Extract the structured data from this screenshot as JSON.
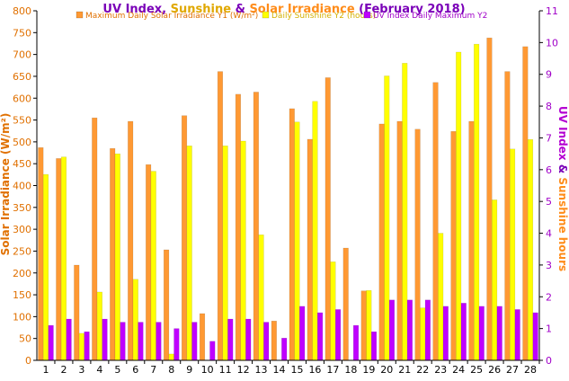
{
  "chart_data": {
    "type": "bar",
    "title_parts": [
      {
        "text": "UV Index",
        "color": "#7a00b8"
      },
      {
        "text": ", ",
        "color": "#7a00b8"
      },
      {
        "text": "Sunshine",
        "color": "#e0a800"
      },
      {
        "text": " & ",
        "color": "#7a00b8"
      },
      {
        "text": "Solar Irradiance",
        "color": "#ff8c1a"
      },
      {
        "text": " (February 2018)",
        "color": "#7a00b8"
      }
    ],
    "ylabel_left": "Solar Irradiance (W/m²)",
    "ylabel_right_parts": [
      {
        "text": "UV Index",
        "color": "#b400d2"
      },
      {
        "text": " & ",
        "color": "#7a00b8"
      },
      {
        "text": "Sunshine hours",
        "color": "#ff8c1a"
      }
    ],
    "ylim_left": [
      0,
      800
    ],
    "yticks_left": [
      0,
      50,
      100,
      150,
      200,
      250,
      300,
      350,
      400,
      450,
      500,
      550,
      600,
      650,
      700,
      750,
      800
    ],
    "ylim_right": [
      0,
      11
    ],
    "yticks_right": [
      0,
      1,
      2,
      3,
      4,
      5,
      6,
      7,
      8,
      9,
      10,
      11
    ],
    "categories": [
      "1",
      "2",
      "3",
      "4",
      "5",
      "6",
      "7",
      "8",
      "9",
      "10",
      "11",
      "12",
      "13",
      "14",
      "15",
      "16",
      "17",
      "18",
      "19",
      "20",
      "21",
      "22",
      "23",
      "24",
      "25",
      "26",
      "27",
      "28"
    ],
    "series": [
      {
        "name": "Maximum Daily Solar Irradiance Y1 (W/m²)",
        "axis": "left",
        "color": "#ff9933",
        "values": [
          487,
          462,
          218,
          555,
          485,
          547,
          448,
          253,
          560,
          107,
          661,
          609,
          614,
          90,
          576,
          506,
          647,
          257,
          159,
          541,
          547,
          529,
          636,
          524,
          547,
          738,
          661,
          718
        ]
      },
      {
        "name": "Daily Sunshine Y2 (hours)",
        "axis": "right",
        "color": "#ffff00",
        "values": [
          5.85,
          6.4,
          0.85,
          2.15,
          6.5,
          2.55,
          5.95,
          0.2,
          6.75,
          0,
          6.75,
          6.9,
          3.95,
          0,
          7.5,
          8.15,
          3.1,
          0,
          2.2,
          8.95,
          9.35,
          1.65,
          4.0,
          9.7,
          9.95,
          5.05,
          6.65,
          6.95
        ]
      },
      {
        "name": "UV Index Daily Maximum Y2",
        "axis": "right",
        "color": "#bf00ff",
        "values": [
          1.1,
          1.3,
          0.9,
          1.3,
          1.2,
          1.2,
          1.2,
          1.0,
          1.2,
          0.6,
          1.3,
          1.3,
          1.2,
          0.7,
          1.7,
          1.5,
          1.6,
          1.1,
          0.9,
          1.9,
          1.9,
          1.9,
          1.7,
          1.8,
          1.7,
          1.7,
          1.6,
          1.5
        ]
      }
    ],
    "legend_position": "top",
    "grid": false,
    "colors": {
      "left_axis_text": "#e07000",
      "right_axis_text": "#a000c8",
      "axis_line": "#000000"
    }
  }
}
